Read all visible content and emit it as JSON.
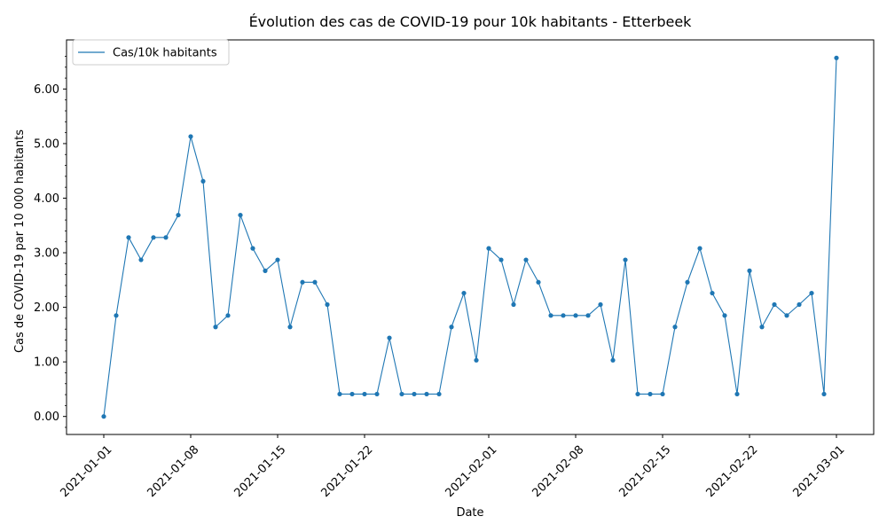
{
  "chart_data": {
    "type": "line",
    "title": "Évolution des cas de COVID-19 pour 10k habitants - Etterbeek",
    "xlabel": "Date",
    "ylabel": "Cas de COVID-19 par 10 000 habitants",
    "x_start": "2021-01-01",
    "x_ticks": [
      "2021-01-01",
      "2021-01-08",
      "2021-01-15",
      "2021-01-22",
      "2021-02-01",
      "2021-02-08",
      "2021-02-15",
      "2021-02-22",
      "2021-03-01"
    ],
    "y_ticks": [
      "0.00",
      "1.00",
      "2.00",
      "3.00",
      "4.00",
      "5.00",
      "6.00"
    ],
    "xlim": [
      "2020-12-29",
      "2021-03-04"
    ],
    "ylim": [
      -0.33,
      6.9
    ],
    "grid": false,
    "legend_position": "top-left",
    "color": "#1f77b4",
    "series": [
      {
        "name": "Cas/10k habitants",
        "x": [
          "2021-01-01",
          "2021-01-02",
          "2021-01-03",
          "2021-01-04",
          "2021-01-05",
          "2021-01-06",
          "2021-01-07",
          "2021-01-08",
          "2021-01-09",
          "2021-01-10",
          "2021-01-11",
          "2021-01-12",
          "2021-01-13",
          "2021-01-14",
          "2021-01-15",
          "2021-01-16",
          "2021-01-17",
          "2021-01-18",
          "2021-01-19",
          "2021-01-20",
          "2021-01-21",
          "2021-01-22",
          "2021-01-23",
          "2021-01-24",
          "2021-01-25",
          "2021-01-26",
          "2021-01-27",
          "2021-01-28",
          "2021-01-29",
          "2021-01-30",
          "2021-01-31",
          "2021-02-01",
          "2021-02-02",
          "2021-02-03",
          "2021-02-04",
          "2021-02-05",
          "2021-02-06",
          "2021-02-07",
          "2021-02-08",
          "2021-02-09",
          "2021-02-10",
          "2021-02-11",
          "2021-02-12",
          "2021-02-13",
          "2021-02-14",
          "2021-02-15",
          "2021-02-16",
          "2021-02-17",
          "2021-02-18",
          "2021-02-19",
          "2021-02-20",
          "2021-02-21",
          "2021-02-22",
          "2021-02-23",
          "2021-02-24",
          "2021-02-25",
          "2021-02-26",
          "2021-02-27",
          "2021-02-28",
          "2021-03-01"
        ],
        "values": [
          0.0,
          1.85,
          3.28,
          2.87,
          3.28,
          3.28,
          3.69,
          5.13,
          4.31,
          1.64,
          1.85,
          3.69,
          3.08,
          2.67,
          2.87,
          1.64,
          2.46,
          2.46,
          2.05,
          0.41,
          0.41,
          0.41,
          0.41,
          1.44,
          0.41,
          0.41,
          0.41,
          0.41,
          1.64,
          2.26,
          1.03,
          3.08,
          2.87,
          2.05,
          2.87,
          2.46,
          1.85,
          1.85,
          1.85,
          1.85,
          2.05,
          1.03,
          2.87,
          0.41,
          0.41,
          0.41,
          1.64,
          2.46,
          3.08,
          2.26,
          1.85,
          0.41,
          2.67,
          1.64,
          2.05,
          1.85,
          2.05,
          2.26,
          0.41,
          6.57
        ]
      }
    ]
  }
}
